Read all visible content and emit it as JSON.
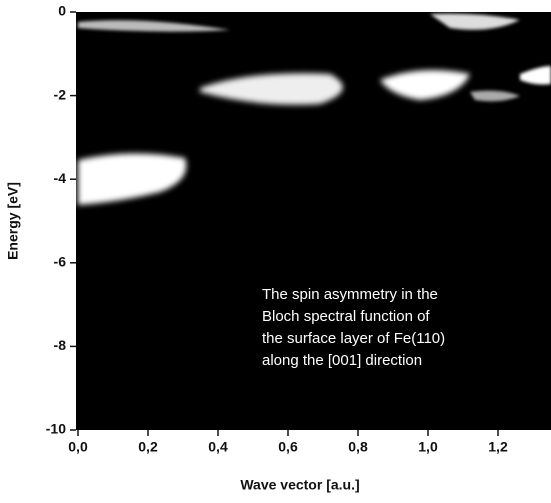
{
  "chart_data": {
    "type": "heatmap",
    "xlabel": "Wave vector [a.u.]",
    "ylabel": "Energy [eV]",
    "xlim": [
      0,
      1.35
    ],
    "ylim": [
      -10,
      0
    ],
    "xticks": [
      {
        "value": 0,
        "label": "0,0"
      },
      {
        "value": 0.2,
        "label": "0,2"
      },
      {
        "value": 0.4,
        "label": "0,4"
      },
      {
        "value": 0.6,
        "label": "0,6"
      },
      {
        "value": 0.8,
        "label": "0,8"
      },
      {
        "value": 1.0,
        "label": "1,0"
      },
      {
        "value": 1.2,
        "label": "1,2"
      }
    ],
    "yticks": [
      0,
      -2,
      -4,
      -6,
      -8,
      -10
    ],
    "annotation": [
      "The spin asymmetry in the",
      "Bloch spectral function of",
      "the surface layer of Fe(110)",
      "along the [001] direction"
    ]
  }
}
